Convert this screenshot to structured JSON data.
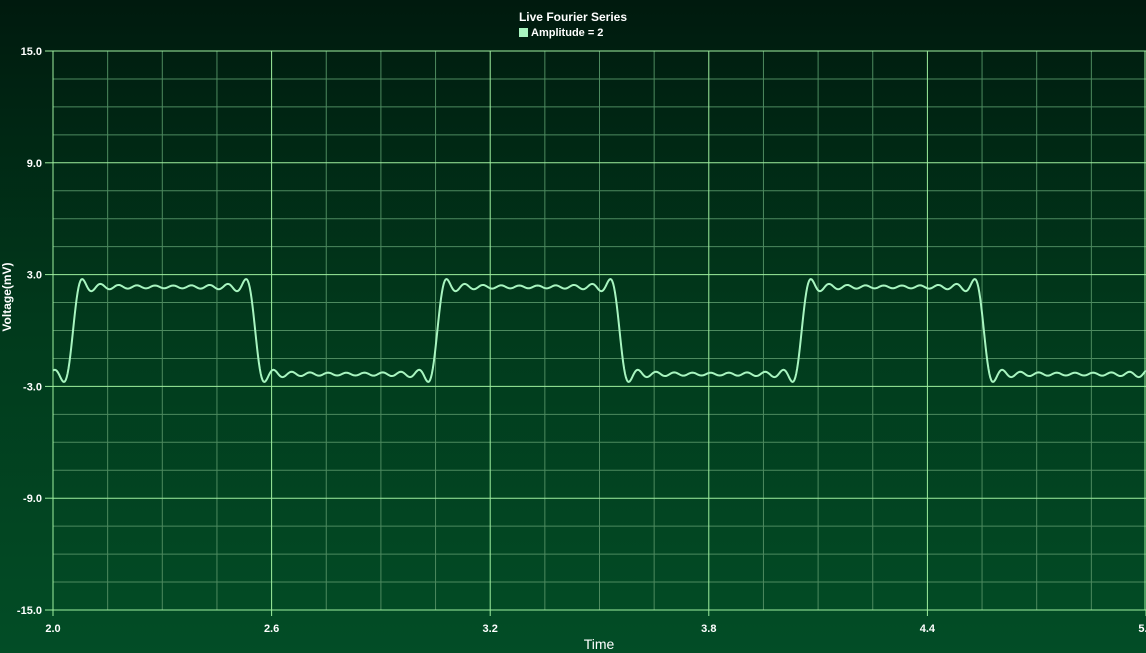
{
  "chart_data": {
    "type": "line",
    "title": "Live Fourier Series",
    "xlabel": "Time",
    "ylabel": "Voltage(mV)",
    "xlim": [
      2.0,
      5.0
    ],
    "ylim": [
      -15.0,
      15.0
    ],
    "x_ticks": [
      "2.0",
      "2.6",
      "3.2",
      "3.8",
      "4.4",
      "5.0"
    ],
    "x_tick_values": [
      2.0,
      2.6,
      3.2,
      3.8,
      4.4,
      5.0
    ],
    "y_ticks": [
      "15.0",
      "9.0",
      "3.0",
      "-3.0",
      "-9.0",
      "-15.0"
    ],
    "y_tick_values": [
      15.0,
      9.0,
      3.0,
      -3.0,
      -9.0,
      -15.0
    ],
    "grid": true,
    "legend_position": "top-center",
    "series": [
      {
        "name": "Amplitude = 2",
        "color": "#a8f5c0",
        "waveform": "square-wave fourier partial sum",
        "amplitude": 2,
        "period": 1.0,
        "harmonics": [
          1,
          3,
          5,
          7,
          9,
          11,
          13,
          15,
          17,
          19
        ]
      }
    ]
  },
  "colors": {
    "grid_major": "#9ff09f",
    "grid_minor": "#4d8a5f",
    "line": "#a8f5c0",
    "legend_swatch": "#a8f5c0"
  }
}
